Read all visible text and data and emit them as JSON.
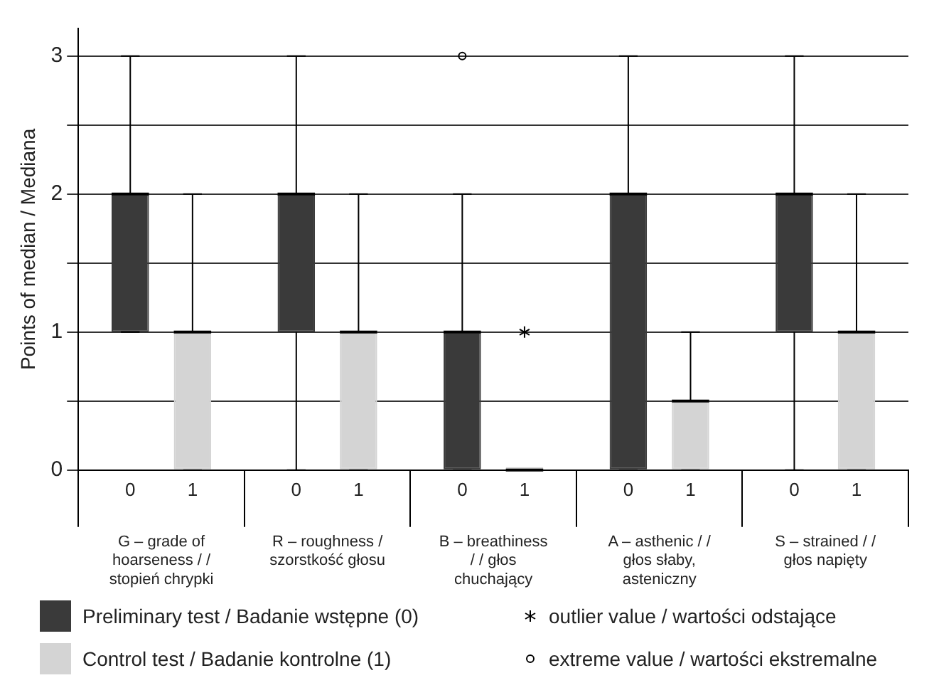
{
  "chart_data": {
    "type": "box",
    "ylabel": "Points of median / Mediana",
    "categories": [
      "G – grade of hoarseness / / stopień chrypki",
      "R – roughness / szorstkość głosu",
      "B – breathiness / / głos chuchający",
      "A – asthenic / / głos słaby, asteniczny",
      "S – strained / / głos napięty"
    ],
    "series": [
      {
        "name": "Preliminary test / Badanie wstępne (0)",
        "color": "#3a3a3a",
        "marker": "circle",
        "boxes": [
          {
            "low": 1,
            "q1": 1,
            "median": 2,
            "q3": 2,
            "high": 3
          },
          {
            "low": 0,
            "q1": 1,
            "median": 2,
            "q3": 2,
            "high": 3
          },
          {
            "low": 0,
            "q1": 0,
            "median": 1,
            "q3": 1,
            "high": 2,
            "outliers": [
              3
            ]
          },
          {
            "low": 0,
            "q1": 0,
            "median": 2,
            "q3": 2,
            "high": 3
          },
          {
            "low": 0,
            "q1": 1,
            "median": 2,
            "q3": 2,
            "high": 3
          }
        ]
      },
      {
        "name": "Control test / Badanie kontrolne (1)",
        "color": "#d4d4d4",
        "marker": "star",
        "boxes": [
          {
            "low": 0,
            "q1": 0,
            "median": 1,
            "q3": 1,
            "high": 2
          },
          {
            "low": 0,
            "q1": 0,
            "median": 1,
            "q3": 1,
            "high": 2
          },
          {
            "low": 0,
            "q1": 0,
            "median": 0,
            "q3": 0,
            "high": 0,
            "outliers": [
              1
            ]
          },
          {
            "low": 0,
            "q1": 0,
            "median": 0.5,
            "q3": 0.5,
            "high": 1
          },
          {
            "low": 0,
            "q1": 0,
            "median": 1,
            "q3": 1,
            "high": 2
          }
        ]
      }
    ],
    "ylim": [
      0,
      3.2
    ],
    "yticks": [
      0,
      {
        "value": 0.5,
        "label": null
      },
      1,
      {
        "value": 1.5,
        "label": null
      },
      2,
      {
        "value": 2.5,
        "label": null
      },
      3
    ],
    "grid": "y",
    "legend": "bottom",
    "annotations": [
      "0",
      "1",
      "0",
      "1",
      "0",
      "1",
      "0",
      "1",
      "0",
      "1",
      "outlier value / wartości odstające",
      "extreme value / wartości ekstremalne"
    ]
  }
}
